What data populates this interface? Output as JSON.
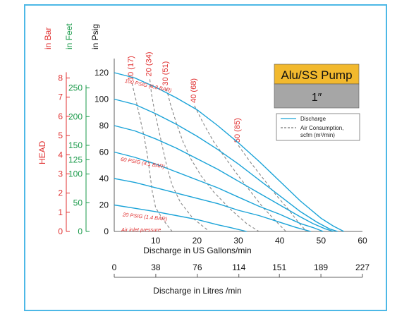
{
  "chart_data": {
    "type": "line",
    "title": "",
    "pump_title": "Alu/SS Pump",
    "pump_size": "1″",
    "axes": {
      "psig": {
        "label": "in Psig",
        "ticks": [
          0,
          20,
          40,
          60,
          80,
          100,
          120
        ],
        "range": [
          0,
          128
        ],
        "color": "#111111"
      },
      "feet": {
        "label": "in Feet",
        "ticks": [
          0,
          50,
          100,
          125,
          150,
          200,
          250
        ],
        "range": [
          0,
          295
        ],
        "color": "#1a9a4a"
      },
      "bar": {
        "label": "in Bar",
        "ticks": [
          0,
          1,
          2,
          3,
          4,
          5,
          6,
          7,
          8
        ],
        "range": [
          0,
          8.83
        ],
        "color": "#e03030"
      },
      "head_label": "HEAD",
      "x_gpm": {
        "label": "Discharge in US Gallons/min",
        "ticks": [
          10,
          20,
          30,
          40,
          50,
          60
        ],
        "range": [
          0,
          60
        ]
      },
      "x_lpm": {
        "label": "Discharge in Litres /min",
        "ticks": [
          0,
          38,
          76,
          114,
          151,
          189,
          227
        ],
        "range": [
          0,
          227
        ]
      }
    },
    "legend": {
      "discharge": "Discharge",
      "air_line1": "Air Consumption,",
      "air_line2": "scfm (m³/min)",
      "discharge_color": "#1aa3d8",
      "air_color": "#888888"
    },
    "discharge_series": [
      {
        "name": "100 PSIG (6.8 BAR)",
        "x": [
          0,
          5,
          10,
          15,
          20,
          25,
          30,
          35,
          40,
          45,
          50,
          53,
          55.5
        ],
        "y": [
          120,
          116,
          109,
          101,
          92,
          80,
          67,
          53,
          38,
          23,
          10,
          4,
          0
        ]
      },
      {
        "name": "",
        "x": [
          0,
          5,
          10,
          15,
          20,
          25,
          30,
          35,
          40,
          45,
          49,
          52,
          54
        ],
        "y": [
          100,
          96,
          89,
          81,
          72,
          62,
          51,
          39,
          27,
          15,
          7,
          2,
          0
        ]
      },
      {
        "name": "",
        "x": [
          0,
          5,
          10,
          15,
          20,
          25,
          30,
          35,
          40,
          45,
          48,
          51,
          53
        ],
        "y": [
          80,
          76,
          70,
          63,
          55,
          47,
          38,
          29,
          20,
          11,
          6,
          2,
          0
        ]
      },
      {
        "name": "60 PSIG (4.1 BAR)",
        "x": [
          0,
          5,
          10,
          15,
          20,
          25,
          30,
          35,
          40,
          45,
          48,
          50.5
        ],
        "y": [
          60,
          56,
          51,
          45,
          39,
          33,
          26,
          19,
          13,
          6,
          3,
          0
        ]
      },
      {
        "name": "",
        "x": [
          0,
          5,
          10,
          15,
          20,
          25,
          30,
          35,
          40,
          44,
          47.5
        ],
        "y": [
          40,
          37,
          33,
          29,
          25,
          21,
          16,
          12,
          7,
          3,
          0
        ]
      },
      {
        "name": "20 PSIG (1.4 BAR)",
        "x": [
          0,
          5,
          10,
          15,
          20,
          25,
          28,
          32
        ],
        "y": [
          20,
          17.5,
          15,
          12,
          9,
          5,
          3,
          0
        ]
      }
    ],
    "air_series": [
      {
        "name": "10 (17)",
        "x": [
          4.3,
          5.2,
          6.2,
          7.2,
          8.0,
          8.6,
          9.2,
          10.0,
          12.0,
          14.0
        ],
        "y": [
          112,
          100,
          86,
          72,
          58,
          44,
          30,
          18,
          8,
          0
        ]
      },
      {
        "name": "20 (34)",
        "x": [
          8.6,
          9.0,
          9.8,
          10.8,
          11.8,
          12.8,
          14.0,
          16.0,
          19.0,
          23.0
        ],
        "y": [
          115,
          104,
          90,
          76,
          62,
          48,
          35,
          22,
          10,
          0
        ]
      },
      {
        "name": "30 (51)",
        "x": [
          12.6,
          13.6,
          15.0,
          16.6,
          18.5,
          21.0,
          24.0,
          28.0,
          32.0,
          35.0
        ],
        "y": [
          108,
          96,
          82,
          68,
          55,
          42,
          30,
          17,
          6,
          0
        ]
      },
      {
        "name": "40 (68)",
        "x": [
          19.4,
          21.5,
          24.0,
          27.0,
          30.0,
          33.0,
          36.0,
          39.0,
          41.5
        ],
        "y": [
          95,
          82,
          68,
          55,
          42,
          30,
          18,
          8,
          0
        ]
      },
      {
        "name": "50 (85)",
        "x": [
          30.0,
          33.0,
          36.0,
          39.0,
          42.0,
          44.5,
          46.5
        ],
        "y": [
          65,
          52,
          40,
          28,
          17,
          7,
          0
        ]
      }
    ],
    "inlet_note": "Air inlet pressure"
  }
}
